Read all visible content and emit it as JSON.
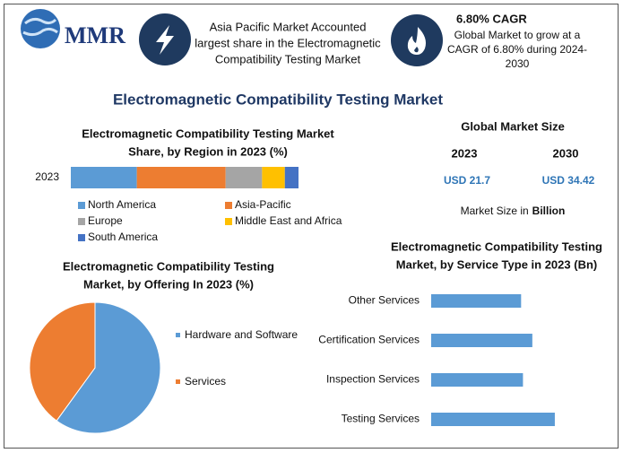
{
  "header": {
    "logo_text": "MMR",
    "highlight_lines": [
      "Asia Pacific Market Accounted",
      "largest share in the Electromagnetic",
      "Compatibility Testing Market"
    ],
    "cagr_title": "6.80% CAGR",
    "cagr_lines": [
      "Global Market to grow at a",
      "CAGR of 6.80% during 2024-",
      "2030"
    ]
  },
  "title": "Electromagnetic Compatibility Testing Market",
  "market_size": {
    "title": "Global Market Size",
    "years": [
      "2023",
      "2030"
    ],
    "values": [
      "USD 21.7",
      "USD 34.42"
    ],
    "note": "Market Size in",
    "note_unit": "Billion"
  },
  "chart_data": [
    {
      "type": "bar",
      "stacked": true,
      "horizontal": true,
      "title": [
        "Electromagnetic Compatibility Testing Market",
        "Share, by Region in 2023 (%)"
      ],
      "categories": [
        "2023"
      ],
      "xlim": [
        0,
        100
      ],
      "series": [
        {
          "name": "North America",
          "color": "#5b9bd5",
          "values": [
            29
          ]
        },
        {
          "name": "Asia-Pacific",
          "color": "#ed7d31",
          "values": [
            39
          ]
        },
        {
          "name": "Europe",
          "color": "#a5a5a5",
          "values": [
            16
          ]
        },
        {
          "name": "Middle East and Africa",
          "color": "#ffc000",
          "values": [
            10
          ]
        },
        {
          "name": "South America",
          "color": "#4472c4",
          "values": [
            6
          ]
        }
      ]
    },
    {
      "type": "pie",
      "title": [
        "Electromagnetic Compatibility Testing",
        "Market, by Offering In 2023 (%)"
      ],
      "categories": [
        "Hardware and Software",
        "Services"
      ],
      "values": [
        60,
        40
      ],
      "colors": [
        "#5b9bd5",
        "#ed7d31"
      ]
    },
    {
      "type": "bar",
      "stacked": false,
      "horizontal": true,
      "title": [
        "Electromagnetic Compatibility Testing",
        "Market, by Service Type in 2023 (Bn)"
      ],
      "categories": [
        "Other Services",
        "Certification Services",
        "Inspection Services",
        "Testing Services"
      ],
      "values": [
        4.8,
        5.4,
        4.9,
        6.6
      ],
      "color": "#5b9bd5",
      "xlim": [
        0,
        10
      ]
    }
  ]
}
